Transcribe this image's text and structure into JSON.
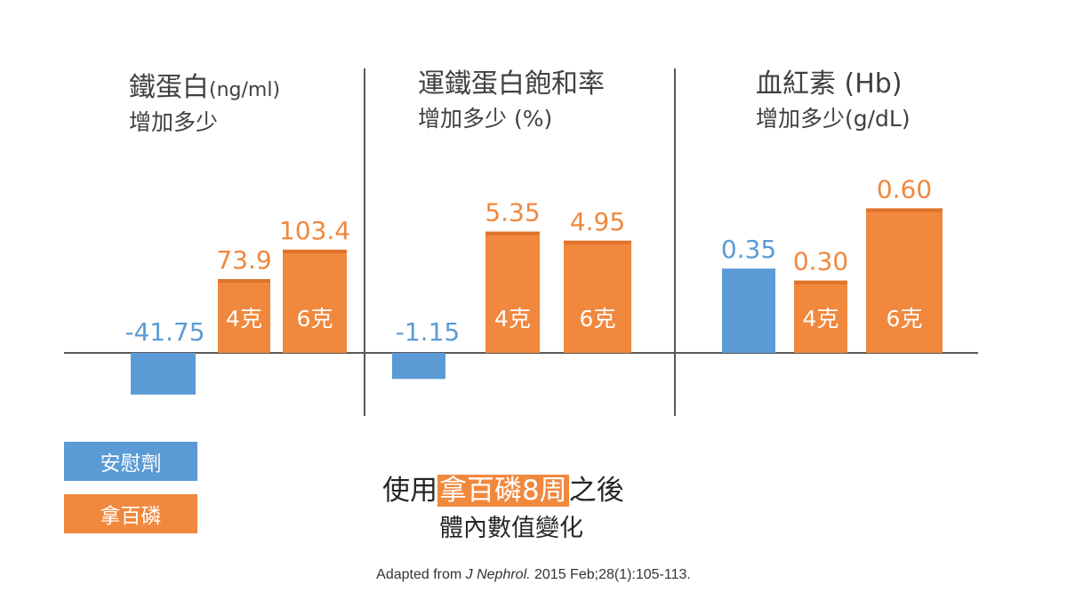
{
  "chart_data": {
    "type": "bar",
    "panels": [
      {
        "title": "鐵蛋白",
        "title_unit": "(ng/ml)",
        "subtitle": "增加多少",
        "bars": [
          {
            "group": "安慰劑",
            "value": -41.75,
            "value_label": "-41.75",
            "inner_label": ""
          },
          {
            "group": "拿百磷",
            "value": 73.9,
            "value_label": "73.9",
            "inner_label": "4克"
          },
          {
            "group": "拿百磷",
            "value": 103.4,
            "value_label": "103.4",
            "inner_label": "6克"
          }
        ]
      },
      {
        "title": "運鐵蛋白飽和率",
        "title_unit": "",
        "subtitle": "增加多少  (%)",
        "bars": [
          {
            "group": "安慰劑",
            "value": -1.15,
            "value_label": "-1.15",
            "inner_label": ""
          },
          {
            "group": "拿百磷",
            "value": 5.35,
            "value_label": "5.35",
            "inner_label": "4克"
          },
          {
            "group": "拿百磷",
            "value": 4.95,
            "value_label": "4.95",
            "inner_label": "6克"
          }
        ]
      },
      {
        "title": "血紅素 (Hb)",
        "title_unit": "",
        "subtitle": "增加多少(g/dL)",
        "bars": [
          {
            "group": "安慰劑",
            "value": 0.35,
            "value_label": "0.35",
            "inner_label": ""
          },
          {
            "group": "拿百磷",
            "value": 0.3,
            "value_label": "0.30",
            "inner_label": "4克"
          },
          {
            "group": "拿百磷",
            "value": 0.6,
            "value_label": "0.60",
            "inner_label": "6克"
          }
        ]
      }
    ],
    "legend": [
      {
        "name": "安慰劑",
        "color": "#5b9bd5"
      },
      {
        "name": "拿百磷",
        "color": "#f0883e"
      }
    ],
    "legend_position": "bottom-left",
    "colors": {
      "placebo": "#5b9bd5",
      "drug": "#f0883e",
      "drug_cap": "#e0722a",
      "placebo_label": "#5b9bd5"
    }
  },
  "caption": {
    "pre": "使用",
    "highlight": "拿百磷8周",
    "post": "之後",
    "line2": "體內數值變化"
  },
  "source": {
    "prefix": "Adapted from ",
    "journal": "J Nephrol.",
    "suffix": " 2015 Feb;28(1):105-113."
  }
}
